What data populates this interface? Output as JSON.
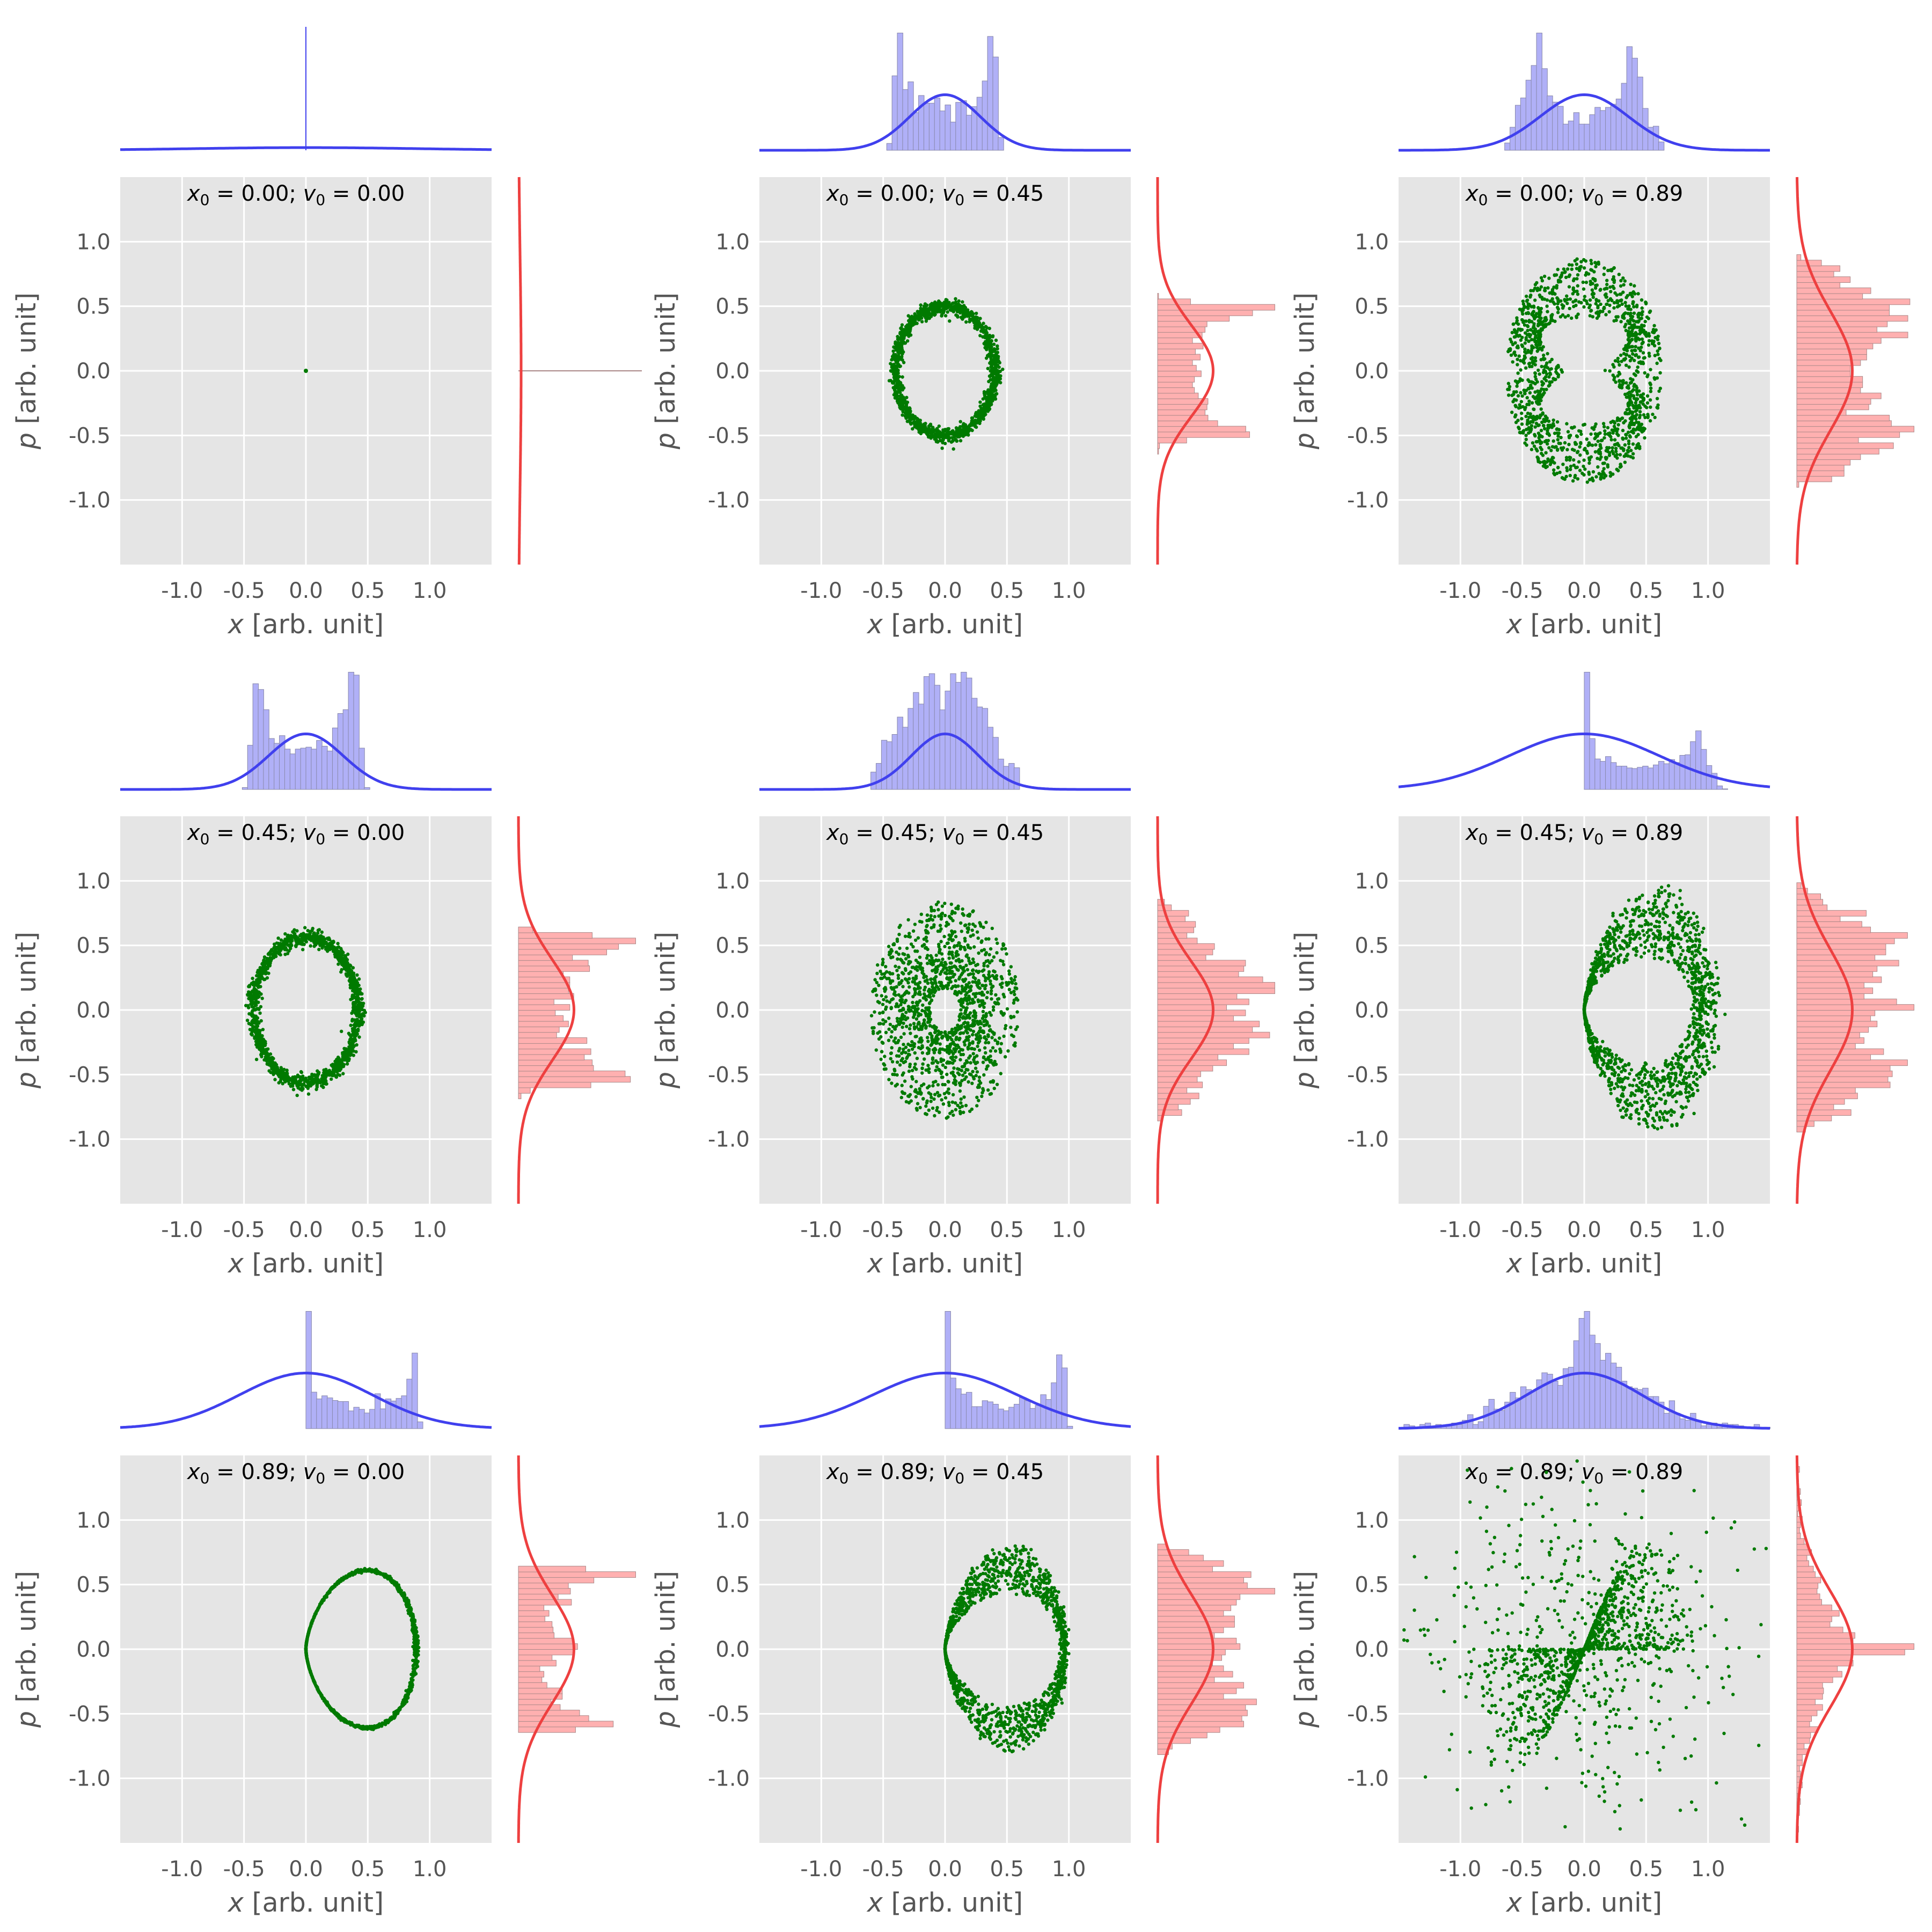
{
  "chart_data": {
    "type": "scatter",
    "layout": "3x3 phase-space grid with marginal histograms",
    "xlabel_var": "x",
    "ylabel_var": "p",
    "unit": "[arb. unit]",
    "xlim": [
      -1.5,
      1.5
    ],
    "ylim": [
      -1.5,
      1.5
    ],
    "xticks": [
      -1.0,
      -0.5,
      0.0,
      0.5,
      1.0
    ],
    "yticks": [
      1.0,
      0.5,
      0.0,
      -0.5,
      -1.0
    ],
    "xtick_labels": [
      "-1.0",
      "-0.5",
      "0.0",
      "0.5",
      "1.0"
    ],
    "ytick_labels": [
      "1.0",
      "0.5",
      "0.0",
      "-0.5",
      "-1.0"
    ],
    "grid": true,
    "colors": {
      "scatter": "#007a00",
      "x_marginal": "#4040ee",
      "x_hist_fill": "#b0b0f7",
      "p_marginal": "#ee4040",
      "p_hist_fill": "#ffb0b0",
      "axes_bg": "#e5e5e5",
      "grid": "#ffffff"
    },
    "panels": [
      {
        "x0": "0.00",
        "v0": "0.00",
        "shape": "point",
        "cx": 0.0,
        "xa": 0.0,
        "pa": 0.0,
        "style": "dot"
      },
      {
        "x0": "0.00",
        "v0": "0.45",
        "shape": "oval",
        "cx": 0.0,
        "xa": 0.4,
        "pa": 0.5,
        "style": "thick"
      },
      {
        "x0": "0.00",
        "v0": "0.89",
        "shape": "oval",
        "cx": 0.0,
        "xa": 0.63,
        "pa": 0.87,
        "style": "rosette"
      },
      {
        "x0": "0.45",
        "v0": "0.00",
        "shape": "oval",
        "cx": 0.0,
        "xa": 0.42,
        "pa": 0.56,
        "style": "thick"
      },
      {
        "x0": "0.45",
        "v0": "0.45",
        "shape": "oval",
        "cx": 0.0,
        "xa": 0.6,
        "pa": 0.84,
        "style": "filled"
      },
      {
        "x0": "0.45",
        "v0": "0.89",
        "shape": "teardrop",
        "cx": 0.0,
        "xa": 1.05,
        "pa": 1.0,
        "style": "cloud"
      },
      {
        "x0": "0.89",
        "v0": "0.00",
        "shape": "teardrop",
        "cx": 0.0,
        "xa": 0.89,
        "pa": 0.66,
        "style": "line"
      },
      {
        "x0": "0.89",
        "v0": "0.45",
        "shape": "teardrop",
        "cx": 0.0,
        "xa": 0.96,
        "pa": 0.86,
        "style": "band"
      },
      {
        "x0": "0.89",
        "v0": "0.89",
        "shape": "butterfly",
        "cx": 0.0,
        "xa": 1.3,
        "pa": 1.3,
        "style": "chaotic"
      }
    ]
  }
}
